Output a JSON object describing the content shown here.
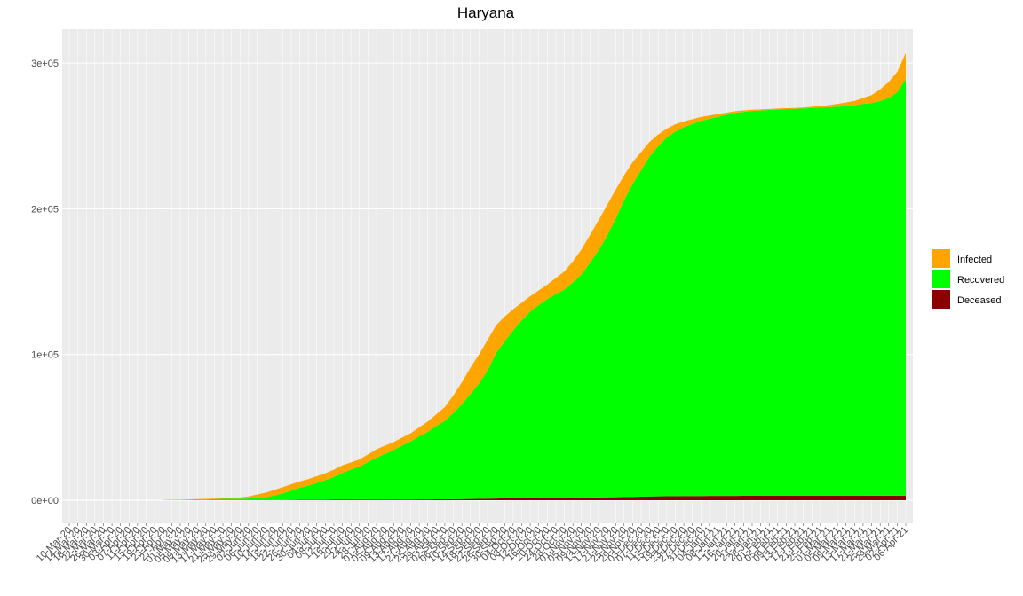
{
  "chart_data": {
    "type": "area",
    "stacked": true,
    "title": "Haryana",
    "categories": [
      "10-Mar-20",
      "14-Mar-20",
      "18-Mar-20",
      "22-Mar-20",
      "26-Mar-20",
      "30-Mar-20",
      "03-Apr-20",
      "07-Apr-20",
      "11-Apr-20",
      "15-Apr-20",
      "19-Apr-20",
      "23-Apr-20",
      "27-Apr-20",
      "01-May-20",
      "05-May-20",
      "09-May-20",
      "13-May-20",
      "17-May-20",
      "21-May-20",
      "25-May-20",
      "29-May-20",
      "02-Jun-20",
      "06-Jun-20",
      "10-Jun-20",
      "14-Jun-20",
      "18-Jun-20",
      "22-Jun-20",
      "26-Jun-20",
      "30-Jun-20",
      "04-Jul-20",
      "08-Jul-20",
      "12-Jul-20",
      "16-Jul-20",
      "20-Jul-20",
      "24-Jul-20",
      "28-Jul-20",
      "01-Aug-20",
      "05-Aug-20",
      "09-Aug-20",
      "13-Aug-20",
      "17-Aug-20",
      "21-Aug-20",
      "25-Aug-20",
      "29-Aug-20",
      "02-Sep-20",
      "06-Sep-20",
      "10-Sep-20",
      "14-Sep-20",
      "18-Sep-20",
      "22-Sep-20",
      "26-Sep-20",
      "30-Sep-20",
      "04-Oct-20",
      "08-Oct-20",
      "12-Oct-20",
      "16-Oct-20",
      "20-Oct-20",
      "24-Oct-20",
      "28-Oct-20",
      "01-Nov-20",
      "05-Nov-20",
      "09-Nov-20",
      "13-Nov-20",
      "17-Nov-20",
      "21-Nov-20",
      "25-Nov-20",
      "29-Nov-20",
      "03-Dec-20",
      "07-Dec-20",
      "11-Dec-20",
      "15-Dec-20",
      "19-Dec-20",
      "23-Dec-20",
      "27-Dec-20",
      "31-Dec-20",
      "04-Jan-21",
      "08-Jan-21",
      "12-Jan-21",
      "16-Jan-21",
      "20-Jan-21",
      "24-Jan-21",
      "28-Jan-21",
      "01-Feb-21",
      "05-Feb-21",
      "09-Feb-21",
      "13-Feb-21",
      "17-Feb-21",
      "21-Feb-21",
      "25-Feb-21",
      "01-Mar-21",
      "05-Mar-21",
      "09-Mar-21",
      "13-Mar-21",
      "17-Mar-21",
      "21-Mar-21",
      "25-Mar-21",
      "29-Mar-21",
      "02-Apr-21",
      "06-Apr-21"
    ],
    "series": [
      {
        "name": "Infected",
        "color": "#ffa500",
        "values": [
          null,
          null,
          null,
          null,
          null,
          null,
          null,
          null,
          null,
          null,
          null,
          180,
          150,
          120,
          300,
          480,
          420,
          500,
          600,
          700,
          800,
          1500,
          2400,
          3200,
          3800,
          4300,
          4400,
          4300,
          4500,
          4600,
          4700,
          5000,
          5200,
          5000,
          4800,
          5200,
          5700,
          5600,
          5500,
          5400,
          5600,
          6000,
          7000,
          8000,
          9500,
          12000,
          15000,
          18000,
          20000,
          21000,
          19000,
          17000,
          14500,
          12000,
          10500,
          10000,
          10000,
          11000,
          12500,
          14500,
          17000,
          19000,
          20500,
          21000,
          20000,
          17000,
          15000,
          12500,
          10000,
          8000,
          6000,
          5000,
          4000,
          3200,
          2700,
          2200,
          1800,
          1500,
          1200,
          1000,
          900,
          800,
          700,
          650,
          600,
          650,
          700,
          900,
          1100,
          1500,
          2000,
          2500,
          3000,
          4000,
          5500,
          8000,
          11000,
          14000,
          18000
        ]
      },
      {
        "name": "Recovered",
        "color": "#00ff00",
        "values": [
          null,
          null,
          null,
          null,
          null,
          null,
          null,
          null,
          null,
          null,
          null,
          87,
          137,
          216,
          254,
          299,
          496,
          664,
          882,
          1000,
          1080,
          1125,
          1520,
          1955,
          3120,
          4570,
          6410,
          8370,
          9760,
          11650,
          13520,
          15690,
          18470,
          20650,
          22830,
          25910,
          28890,
          31470,
          34050,
          37120,
          39900,
          43460,
          46420,
          50380,
          53840,
          59280,
          65200,
          72130,
          79050,
          87950,
          99830,
          107700,
          115100,
          122020,
          127950,
          132400,
          136350,
          139820,
          142780,
          147740,
          153180,
          161130,
          169580,
          179520,
          190950,
          203850,
          214700,
          224050,
          233400,
          240300,
          246220,
          250160,
          253120,
          255380,
          257360,
          258830,
          260210,
          261500,
          262780,
          263470,
          264060,
          264350,
          264750,
          265100,
          265350,
          265500,
          265740,
          266040,
          266330,
          266630,
          266930,
          267420,
          267910,
          268900,
          269390,
          270880,
          272860,
          276840,
          285810
        ]
      },
      {
        "name": "Deceased",
        "color": "#8b0000",
        "values": [
          null,
          null,
          null,
          null,
          null,
          null,
          null,
          null,
          null,
          null,
          null,
          3,
          3,
          4,
          6,
          11,
          14,
          16,
          18,
          20,
          20,
          25,
          30,
          45,
          80,
          130,
          190,
          230,
          240,
          250,
          280,
          310,
          330,
          350,
          370,
          390,
          410,
          430,
          450,
          480,
          500,
          540,
          580,
          620,
          660,
          720,
          800,
          870,
          950,
          1050,
          1170,
          1300,
          1400,
          1480,
          1550,
          1600,
          1650,
          1680,
          1720,
          1760,
          1820,
          1870,
          1920,
          1980,
          2050,
          2150,
          2300,
          2450,
          2600,
          2700,
          2780,
          2840,
          2880,
          2920,
          2940,
          2970,
          2990,
          3000,
          3020,
          3030,
          3040,
          3050,
          3050,
          3050,
          3050,
          3050,
          3060,
          3060,
          3070,
          3070,
          3070,
          3080,
          3090,
          3100,
          3110,
          3120,
          3140,
          3160,
          3190
        ]
      }
    ],
    "ylim": [
      -15800,
      323200
    ],
    "yticks": [
      {
        "value": 0,
        "label": "0e+00"
      },
      {
        "value": 100000,
        "label": "1e+05"
      },
      {
        "value": 200000,
        "label": "2e+05"
      },
      {
        "value": 300000,
        "label": "3e+05"
      }
    ],
    "grid": true,
    "legend": "right"
  }
}
